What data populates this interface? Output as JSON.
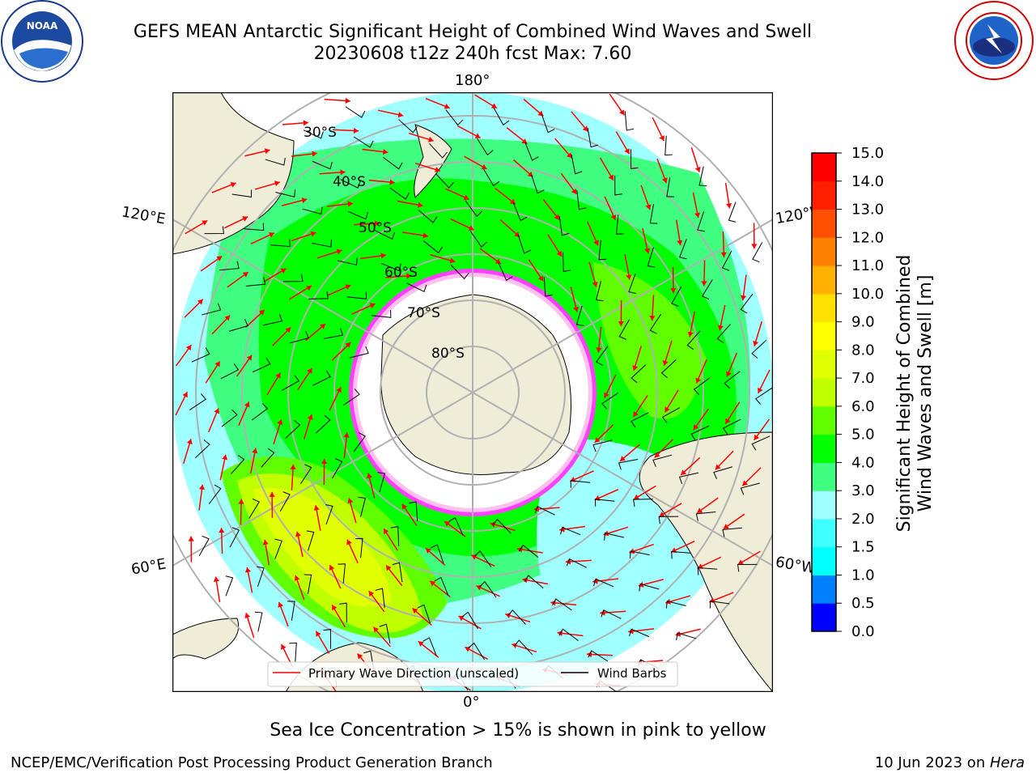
{
  "title": {
    "line1": "GEFS MEAN Antarctic Significant Height of Combined Wind Waves and Swell",
    "line2": "20230608 t12z 240h fcst   Max: 7.60"
  },
  "longitude_labels": {
    "top": "180°",
    "left_upper": "120°E",
    "right_upper": "120°W",
    "left_lower": "60°E",
    "right_lower": "60°W",
    "bottom": "0°"
  },
  "latitude_labels": [
    "30°S",
    "40°S",
    "50°S",
    "60°S",
    "70°S",
    "80°S"
  ],
  "legend": {
    "wave_label": "Primary Wave Direction (unscaled)",
    "barb_label": "Wind Barbs",
    "wave_color": "#ff0000",
    "barb_color": "#000000"
  },
  "colorbar": {
    "label_line1": "Significant Height of Combined",
    "label_line2": "Wind Waves and Swell [m]",
    "ticks": [
      "0.0",
      "0.5",
      "1.0",
      "1.5",
      "2.0",
      "3.0",
      "4.0",
      "5.0",
      "6.0",
      "7.0",
      "8.0",
      "9.0",
      "10.0",
      "11.0",
      "12.0",
      "13.0",
      "14.0",
      "15.0"
    ],
    "colors": [
      "#0000ff",
      "#0080ff",
      "#00ffff",
      "#40ffff",
      "#a0ffff",
      "#40ff80",
      "#00ff00",
      "#60ff00",
      "#c0ff00",
      "#e0ff00",
      "#ffff00",
      "#ffe000",
      "#ffb000",
      "#ff8000",
      "#ff5000",
      "#ff2000",
      "#ff0000"
    ]
  },
  "note": "Sea Ice Concentration > 15% is shown in pink to yellow",
  "footer": {
    "left": "NCEP/EMC/Verification Post Processing Product Generation Branch",
    "right_date": "10 Jun 2023 on ",
    "right_machine": "Hera"
  },
  "colors": {
    "land": "#efedd8",
    "ice_shelf": "#ffffff",
    "ocean_high": "#40ff80",
    "sea_ice_pink": "#ff40ff"
  }
}
